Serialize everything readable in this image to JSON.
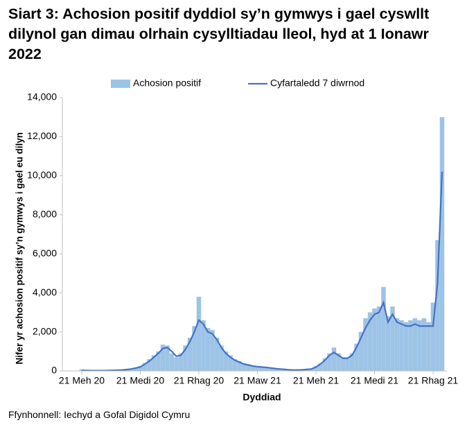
{
  "chart_data": {
    "type": "bar_line",
    "title": "Siart 3: Achosion positif dyddiol sy’n gymwys i gael cyswllt dilynol gan dimau olrhain cysylltiadau lleol, hyd at 1 Ionawr 2022",
    "x_label": "Dyddiad",
    "y_label": "Nifer yr achosion positif sy’n gymwys i gael eu dilyn",
    "source": "Ffynhonnell: Iechyd a Gofal Digidol Cymru",
    "categories": [
      "21 Meh 20",
      null,
      null,
      null,
      null,
      null,
      null,
      null,
      null,
      null,
      null,
      null,
      null,
      "21 Medi 20",
      null,
      null,
      null,
      null,
      null,
      null,
      null,
      null,
      null,
      null,
      null,
      null,
      "21 Rhag 20",
      null,
      null,
      null,
      null,
      null,
      null,
      null,
      null,
      null,
      null,
      null,
      null,
      "21 Maw 21",
      null,
      null,
      null,
      null,
      null,
      null,
      null,
      null,
      null,
      null,
      null,
      null,
      "21 Meh 21",
      null,
      null,
      null,
      null,
      null,
      null,
      null,
      null,
      null,
      null,
      null,
      null,
      "21 Medi 21",
      null,
      null,
      null,
      null,
      null,
      null,
      null,
      null,
      null,
      null,
      null,
      null,
      "21 Rhag 21",
      null,
      null
    ],
    "series": [
      {
        "name": "Achosion positif",
        "type": "bar",
        "color": "#9dc3e6",
        "values": [
          80,
          30,
          25,
          20,
          25,
          20,
          30,
          35,
          45,
          60,
          80,
          120,
          180,
          250,
          400,
          600,
          800,
          1000,
          1350,
          1300,
          900,
          700,
          900,
          1300,
          1700,
          2300,
          3800,
          2600,
          2200,
          2100,
          1700,
          1300,
          1000,
          800,
          600,
          500,
          400,
          350,
          280,
          250,
          220,
          200,
          170,
          140,
          110,
          90,
          70,
          60,
          55,
          70,
          90,
          120,
          250,
          400,
          650,
          900,
          1200,
          900,
          700,
          700,
          900,
          1400,
          2000,
          2700,
          3000,
          3200,
          3300,
          4300,
          2800,
          3300,
          2700,
          2600,
          2500,
          2600,
          2700,
          2600,
          2700,
          2500,
          3500,
          6700,
          13000
        ]
      },
      {
        "name": "Cyfartaledd 7 diwrnod",
        "type": "line",
        "color": "#4472c4",
        "values": [
          30,
          25,
          20,
          20,
          20,
          20,
          25,
          30,
          40,
          50,
          70,
          100,
          150,
          200,
          350,
          500,
          700,
          900,
          1150,
          1200,
          1000,
          750,
          800,
          1100,
          1500,
          2000,
          2600,
          2400,
          2000,
          1900,
          1600,
          1200,
          900,
          700,
          550,
          450,
          350,
          300,
          250,
          220,
          200,
          180,
          150,
          120,
          100,
          80,
          60,
          50,
          50,
          60,
          80,
          100,
          200,
          350,
          550,
          800,
          950,
          800,
          650,
          650,
          800,
          1200,
          1700,
          2200,
          2600,
          2900,
          3000,
          3500,
          2500,
          2900,
          2500,
          2400,
          2300,
          2300,
          2400,
          2300,
          2300,
          2300,
          2300,
          4500,
          10200
        ]
      }
    ],
    "ylim": [
      0,
      14000
    ],
    "yticks": [
      0,
      {
        "value": 2000,
        "label": "2,000"
      },
      {
        "value": 4000,
        "label": "4,000"
      },
      {
        "value": 6000,
        "label": "6,000"
      },
      {
        "value": 8000,
        "label": "8,000"
      },
      {
        "value": 10000,
        "label": "10,000"
      },
      {
        "value": 12000,
        "label": "12,000"
      },
      {
        "value": 14000,
        "label": "14,000"
      }
    ],
    "grid": false,
    "legend": "top"
  }
}
